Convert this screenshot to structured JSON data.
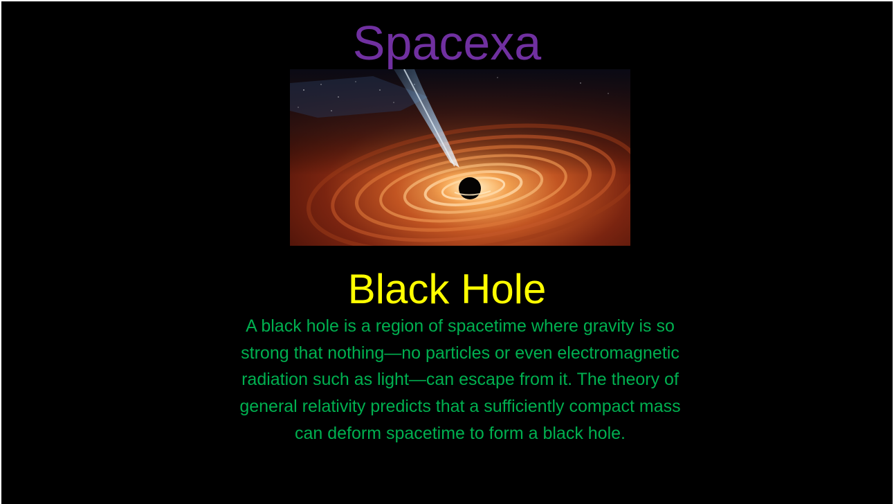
{
  "slide": {
    "title": "Spacexa",
    "image": {
      "icon": "black-hole-illustration",
      "description_colors": {
        "disk_outer": "#5a1608",
        "disk_mid": "#c85a1e",
        "disk_inner": "#ffd9a0",
        "jet": "#bfe0ff"
      }
    },
    "heading": "Black Hole",
    "body": "A black hole is a region of spacetime where gravity is so strong that nothing—no particles or even electromagnetic radiation such as light—can escape from it. The theory of general relativity predicts that a sufficiently compact mass can deform spacetime to form a black hole."
  },
  "colors": {
    "background": "#000000",
    "title": "#7030a0",
    "heading": "#ffff00",
    "body": "#00b050"
  }
}
